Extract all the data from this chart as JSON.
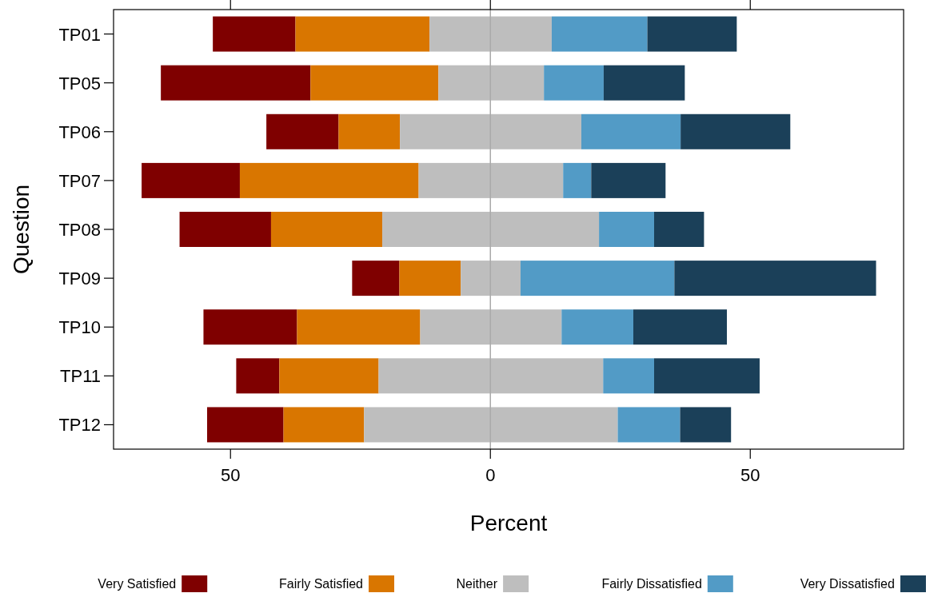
{
  "chart_data": {
    "type": "bar",
    "orientation": "horizontal",
    "xlabel": "Percent",
    "ylabel": "Question",
    "categories": [
      "TP01",
      "TP05",
      "TP06",
      "TP07",
      "TP08",
      "TP09",
      "TP10",
      "TP11",
      "TP12"
    ],
    "series": [
      {
        "name": "Very Satisfied",
        "color": "#7f0000",
        "base": [
          -53.4,
          -63.4,
          -43.1,
          -67.1,
          -59.8,
          -26.6,
          -55.2,
          -48.9,
          -54.5
        ],
        "values": [
          15.9,
          28.8,
          13.9,
          18.9,
          17.6,
          9.1,
          18.0,
          8.3,
          14.7
        ]
      },
      {
        "name": "Fairly Satisfied",
        "color": "#d97600",
        "base": [
          -37.5,
          -34.6,
          -29.2,
          -48.2,
          -42.2,
          -17.5,
          -37.2,
          -40.6,
          -39.8
        ],
        "values": [
          25.8,
          24.6,
          11.8,
          34.4,
          21.4,
          11.8,
          23.7,
          19.1,
          15.5
        ]
      },
      {
        "name": "Neither",
        "color": "#bebebe",
        "base": [
          -11.7,
          -10.0,
          -17.4,
          -13.8,
          -20.8,
          -5.7,
          -13.5,
          -21.5,
          -24.3
        ],
        "values": [
          23.5,
          20.3,
          34.9,
          27.8,
          41.7,
          11.5,
          27.2,
          43.2,
          48.8
        ]
      },
      {
        "name": "Fairly Dissatisfied",
        "color": "#529bc6",
        "base": [
          11.8,
          10.3,
          17.5,
          14.0,
          20.9,
          5.8,
          13.7,
          21.7,
          24.5
        ],
        "values": [
          18.4,
          11.5,
          19.1,
          5.4,
          10.6,
          29.6,
          13.8,
          9.8,
          12.0
        ]
      },
      {
        "name": "Very Dissatisfied",
        "color": "#1b4059",
        "base": [
          30.2,
          21.8,
          36.6,
          19.4,
          31.5,
          35.4,
          27.5,
          31.5,
          36.5
        ],
        "values": [
          17.2,
          15.6,
          21.1,
          14.3,
          9.6,
          38.8,
          18.0,
          20.3,
          9.8
        ]
      }
    ],
    "xlim": [
      -72.5,
      79.5
    ],
    "xticks": [
      {
        "value": -50,
        "label": "50"
      },
      0,
      50
    ],
    "ref_lines": [
      {
        "axis": "x",
        "value": 0,
        "color": "#aaaaaa"
      }
    ],
    "legend": "bottom"
  }
}
